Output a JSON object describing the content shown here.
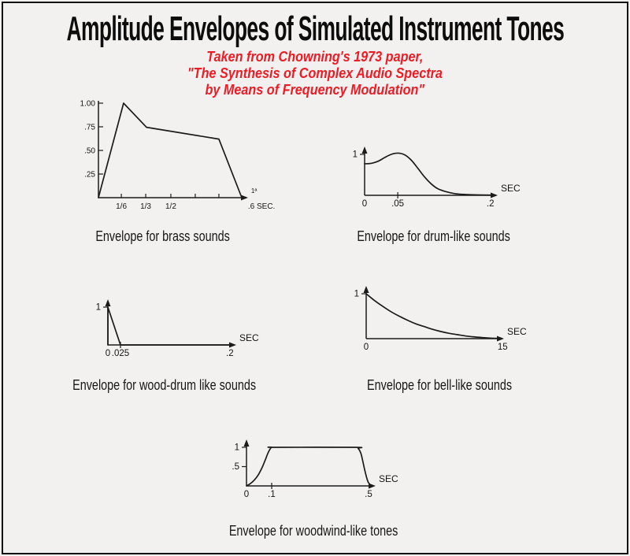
{
  "header": {
    "title": "Amplitude Envelopes of Simulated Instrument Tones",
    "subtitle_lines": [
      "Taken from Chowning's 1973 paper,",
      "\"The Synthesis of Complex Audio Spectra",
      "by Means of Frequency Modulation\""
    ],
    "subtitle_color": "#ee1b24",
    "ink_color": "#1b1b1b",
    "background_color": "#f2f1f0"
  },
  "chart_data": [
    {
      "id": "brass",
      "type": "line",
      "caption": "Envelope for brass sounds",
      "ylim": [
        0,
        1
      ],
      "y_axis": {
        "ticks": [
          {
            "v": 1.0,
            "label": "1.00"
          },
          {
            "v": 0.75,
            "label": ".75"
          },
          {
            "v": 0.5,
            "label": ".50"
          },
          {
            "v": 0.25,
            "label": ".25"
          }
        ]
      },
      "x_axis": {
        "unit": "",
        "ticks": [
          {
            "v": 0.153,
            "label": "1/6"
          },
          {
            "v": 0.316,
            "label": "1/3"
          },
          {
            "v": 0.484,
            "label": "1/2"
          },
          {
            "v": 0.647,
            "label": ""
          },
          {
            "v": 0.805,
            "label": ""
          },
          {
            "v": 1.09,
            "label": ".6 SEC.",
            "tick": false
          },
          {
            "v": 1.04,
            "label": "1ª",
            "tick": false,
            "side": "above",
            "fs": 8
          }
        ]
      },
      "smooth": false,
      "points": [
        [
          0,
          0
        ],
        [
          0.168,
          1.0
        ],
        [
          0.321,
          0.745
        ],
        [
          0.805,
          0.62
        ],
        [
          0.958,
          0
        ]
      ]
    },
    {
      "id": "drum",
      "type": "line",
      "caption": "Envelope for drum-like sounds",
      "ylim": [
        0,
        1.05
      ],
      "y_axis": {
        "ticks": [
          {
            "v": 1.0,
            "label": "1"
          }
        ]
      },
      "x_axis": {
        "unit": "SEC",
        "ticks": [
          {
            "v": 0,
            "label": "0",
            "tick": false
          },
          {
            "v": 0.249,
            "label": ".05"
          },
          {
            "v": 0.945,
            "label": ".2",
            "tick": false
          }
        ]
      },
      "smooth": true,
      "points": [
        [
          0,
          0.77
        ],
        [
          0.05,
          0.78
        ],
        [
          0.1,
          0.83
        ],
        [
          0.15,
          0.92
        ],
        [
          0.2,
          1.0
        ],
        [
          0.25,
          1.03
        ],
        [
          0.3,
          0.99
        ],
        [
          0.35,
          0.86
        ],
        [
          0.4,
          0.66
        ],
        [
          0.45,
          0.45
        ],
        [
          0.5,
          0.28
        ],
        [
          0.55,
          0.16
        ],
        [
          0.61,
          0.09
        ],
        [
          0.68,
          0.04
        ],
        [
          0.76,
          0.02
        ],
        [
          0.85,
          0.01
        ],
        [
          0.95,
          0.005
        ]
      ]
    },
    {
      "id": "wood-drum",
      "type": "line",
      "caption": "Envelope for wood-drum like sounds",
      "ylim": [
        0,
        1
      ],
      "y_axis": {
        "ticks": [
          {
            "v": 1.0,
            "label": "1"
          }
        ]
      },
      "x_axis": {
        "unit": "SEC",
        "ticks": [
          {
            "v": 0,
            "label": "0",
            "tick": false
          },
          {
            "v": 0.098,
            "label": ".025"
          },
          {
            "v": 0.95,
            "label": ".2",
            "tick": false
          }
        ]
      },
      "smooth": false,
      "points": [
        [
          0,
          0
        ],
        [
          0,
          1.0
        ],
        [
          0.098,
          0
        ],
        [
          0.95,
          0
        ]
      ]
    },
    {
      "id": "bell",
      "type": "line",
      "caption": "Envelope for bell-like sounds",
      "ylim": [
        0,
        1
      ],
      "y_axis": {
        "ticks": [
          {
            "v": 1.0,
            "label": "1"
          }
        ]
      },
      "x_axis": {
        "unit": "SEC",
        "ticks": [
          {
            "v": 0,
            "label": "0",
            "tick": false
          },
          {
            "v": 0.99,
            "label": "15",
            "tick": false
          }
        ]
      },
      "smooth": true,
      "points": [
        [
          0,
          1.0
        ],
        [
          0.06,
          0.85
        ],
        [
          0.12,
          0.72
        ],
        [
          0.18,
          0.6
        ],
        [
          0.24,
          0.5
        ],
        [
          0.3,
          0.41
        ],
        [
          0.36,
          0.33
        ],
        [
          0.42,
          0.27
        ],
        [
          0.48,
          0.21
        ],
        [
          0.54,
          0.16
        ],
        [
          0.6,
          0.12
        ],
        [
          0.66,
          0.09
        ],
        [
          0.72,
          0.06
        ],
        [
          0.78,
          0.04
        ],
        [
          0.84,
          0.025
        ],
        [
          0.9,
          0.012
        ],
        [
          0.97,
          0.004
        ]
      ]
    },
    {
      "id": "woodwind",
      "type": "line",
      "caption": "Envelope for woodwind-like tones",
      "ylim": [
        0,
        1
      ],
      "y_axis": {
        "ticks": [
          {
            "v": 1.0,
            "label": "1"
          },
          {
            "v": 0.5,
            "label": ".5"
          }
        ]
      },
      "x_axis": {
        "unit": "SEC",
        "ticks": [
          {
            "v": 0,
            "label": "0",
            "tick": false
          },
          {
            "v": 0.195,
            "label": ".1"
          },
          {
            "v": 0.945,
            "label": ".5",
            "tick": false
          }
        ]
      },
      "smooth": true,
      "points": [
        [
          0,
          0
        ],
        [
          0.03,
          0.06
        ],
        [
          0.06,
          0.15
        ],
        [
          0.09,
          0.28
        ],
        [
          0.12,
          0.47
        ],
        [
          0.145,
          0.67
        ],
        [
          0.165,
          0.84
        ],
        [
          0.18,
          0.94
        ],
        [
          0.195,
          1.0
        ],
        [
          0.22,
          1.0
        ],
        [
          0.84,
          1.0
        ],
        [
          0.865,
          0.97
        ],
        [
          0.885,
          0.85
        ],
        [
          0.9,
          0.65
        ],
        [
          0.915,
          0.42
        ],
        [
          0.93,
          0.22
        ],
        [
          0.945,
          0.08
        ],
        [
          0.97,
          0
        ]
      ]
    }
  ]
}
